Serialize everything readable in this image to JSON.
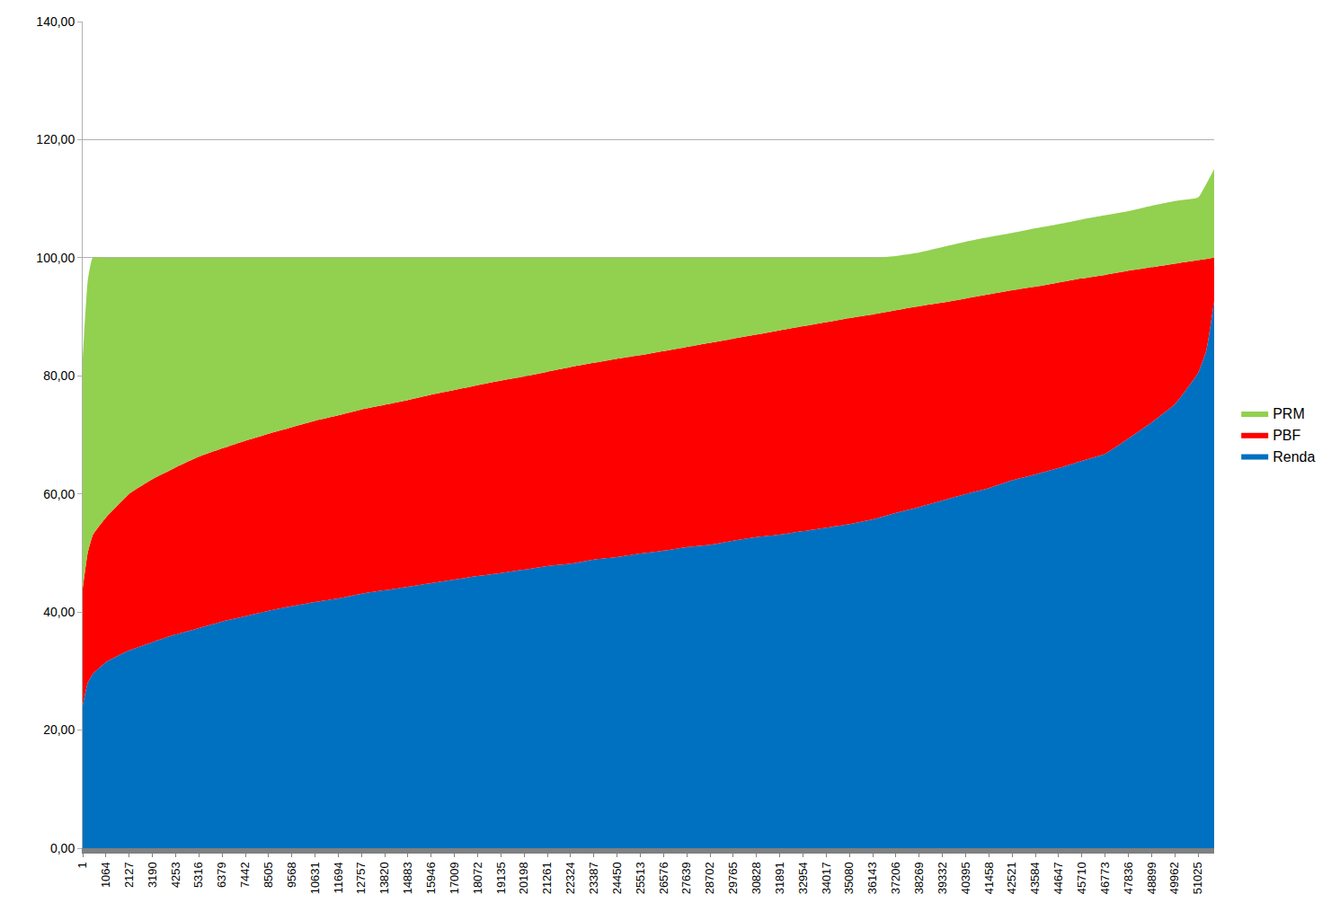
{
  "chart_data": {
    "type": "area",
    "stacked": true,
    "grid": true,
    "legend": "right",
    "x": [
      1,
      230,
      460,
      1064,
      2127,
      3190,
      4253,
      5316,
      6379,
      7442,
      8505,
      9568,
      10631,
      11694,
      12757,
      13820,
      14883,
      15946,
      17009,
      18072,
      19135,
      20198,
      21261,
      22324,
      23387,
      24450,
      25513,
      26576,
      27639,
      28702,
      29765,
      30828,
      31891,
      32954,
      34017,
      35080,
      36143,
      37206,
      38269,
      39332,
      40395,
      41458,
      42521,
      43584,
      44647,
      45710,
      46773,
      47836,
      48899,
      49962,
      51025,
      51400,
      51760
    ],
    "xlim": [
      1,
      51760
    ],
    "xticks": [
      1,
      1064,
      2127,
      3190,
      4253,
      5316,
      6379,
      7442,
      8505,
      9568,
      10631,
      11694,
      12757,
      13820,
      14883,
      15946,
      17009,
      18072,
      19135,
      20198,
      21261,
      22324,
      23387,
      24450,
      25513,
      26576,
      27639,
      28702,
      29765,
      30828,
      31891,
      32954,
      34017,
      35080,
      36143,
      37206,
      38269,
      39332,
      40395,
      41458,
      42521,
      43584,
      44647,
      45710,
      46773,
      47836,
      48899,
      49962,
      51025
    ],
    "ylim": [
      0,
      140
    ],
    "yticks": [
      {
        "value": 0,
        "label": "0,00"
      },
      {
        "value": 20,
        "label": "20,00"
      },
      {
        "value": 40,
        "label": "40,00"
      },
      {
        "value": 60,
        "label": "60,00"
      },
      {
        "value": 80,
        "label": "80,00"
      },
      {
        "value": 100,
        "label": "100,00"
      },
      {
        "value": 120,
        "label": "120,00"
      },
      {
        "value": 140,
        "label": "140,00"
      }
    ],
    "series": [
      {
        "name": "Renda",
        "color": "#0070c0",
        "values": [
          24.2,
          28,
          29.5,
          31.5,
          33.5,
          34.9,
          36.2,
          37.3,
          38.4,
          39.3,
          40.2,
          41,
          41.7,
          42.3,
          43.1,
          43.7,
          44.3,
          44.9,
          45.5,
          46.1,
          46.6,
          47.2,
          47.8,
          48.2,
          48.9,
          49.3,
          49.9,
          50.4,
          51,
          51.4,
          52.1,
          52.7,
          53.1,
          53.7,
          54.3,
          54.9,
          55.7,
          56.8,
          57.8,
          58.9,
          60,
          61,
          62.3,
          63.3,
          64.4,
          65.6,
          66.8,
          69.4,
          72.1,
          75.2,
          80.5,
          84.3,
          92.7
        ]
      },
      {
        "name": "PBF",
        "color": "#ff0000",
        "values": [
          19.8,
          22,
          23.5,
          24.5,
          26.5,
          27.6,
          28.3,
          29,
          29.3,
          29.7,
          30,
          30.3,
          30.7,
          31,
          31.2,
          31.4,
          31.6,
          31.9,
          32.1,
          32.3,
          32.6,
          32.7,
          32.9,
          33.3,
          33.3,
          33.6,
          33.6,
          33.8,
          33.9,
          34.2,
          34.2,
          34.3,
          34.6,
          34.7,
          34.8,
          34.9,
          34.7,
          34.3,
          34,
          33.5,
          33.1,
          32.8,
          32.2,
          31.8,
          31.4,
          30.9,
          30.3,
          28.4,
          26.3,
          23.8,
          19.1,
          15.5,
          7.3
        ]
      },
      {
        "name": "PRM",
        "color": "#92d050",
        "values": [
          39,
          46,
          47,
          44,
          40,
          37.5,
          35.5,
          33.7,
          32.3,
          31,
          29.8,
          28.7,
          27.6,
          26.7,
          25.7,
          24.9,
          24.1,
          23.2,
          22.4,
          21.6,
          20.8,
          20.1,
          19.3,
          18.5,
          17.8,
          17.1,
          16.5,
          15.8,
          15.1,
          14.4,
          13.7,
          13,
          12.3,
          11.6,
          10.9,
          10.2,
          9.6,
          9.2,
          9.1,
          9.4,
          9.6,
          9.7,
          9.7,
          9.9,
          9.9,
          10,
          10.1,
          10.1,
          10.4,
          10.6,
          10.6,
          12.7,
          15
        ]
      }
    ]
  }
}
